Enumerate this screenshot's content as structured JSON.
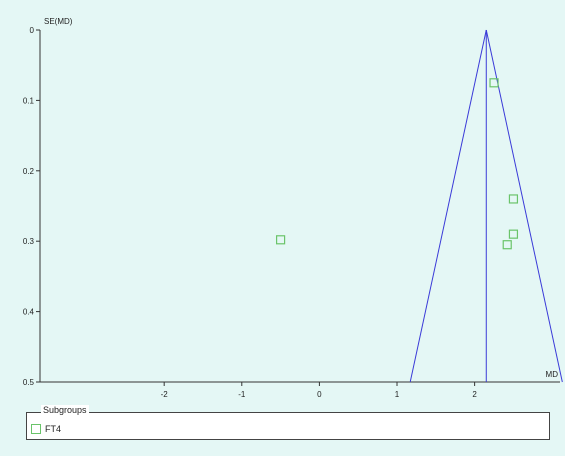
{
  "chart_data": {
    "type": "scatter",
    "title": "",
    "xlabel": "MD",
    "ylabel": "SE(MD)",
    "xlim": [
      -3.6,
      3.1
    ],
    "ylim": [
      0,
      0.5
    ],
    "y_inverted": true,
    "x_ticks": [
      "-2",
      "-1",
      "0",
      "1",
      "2"
    ],
    "x_tick_values": [
      -2,
      -1,
      0,
      1,
      2
    ],
    "y_ticks": [
      "0",
      "0.1",
      "0.2",
      "0.3",
      "0.4",
      "0.5"
    ],
    "y_tick_values": [
      0,
      0.1,
      0.2,
      0.3,
      0.4,
      0.5
    ],
    "pooled_estimate": 2.15,
    "funnel": {
      "apex": [
        2.15,
        0
      ],
      "base_left": [
        1.17,
        0.5
      ],
      "base_right": [
        3.13,
        0.5
      ]
    },
    "series": [
      {
        "name": "FT4",
        "points": [
          {
            "x": 2.25,
            "y": 0.075
          },
          {
            "x": 2.5,
            "y": 0.24
          },
          {
            "x": 2.5,
            "y": 0.29
          },
          {
            "x": 2.42,
            "y": 0.305
          },
          {
            "x": -0.5,
            "y": 0.298
          }
        ]
      }
    ],
    "colors": {
      "funnel": "#3a3ad8",
      "marker": "#6ac46a",
      "axis": "#333333"
    },
    "legend": {
      "title": "Subgroups",
      "placement": "bottom"
    }
  }
}
